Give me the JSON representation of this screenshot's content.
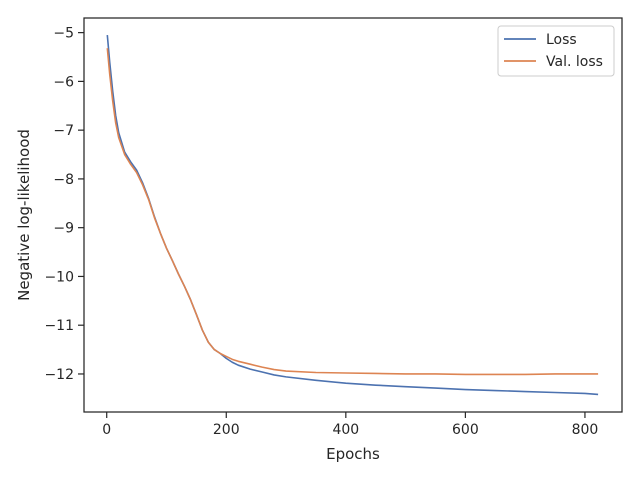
{
  "chart_data": {
    "type": "line",
    "xlabel": "Epochs",
    "ylabel": "Negative log-likelihood",
    "xlim": [
      -38,
      862
    ],
    "ylim": [
      -12.78,
      -4.7
    ],
    "xticks": [
      0,
      200,
      400,
      600,
      800
    ],
    "yticks": [
      -5,
      -6,
      -7,
      -8,
      -9,
      -10,
      -11,
      -12
    ],
    "x_tick_labels": [
      "0",
      "200",
      "400",
      "600",
      "800"
    ],
    "y_tick_labels": [
      "−5",
      "−6",
      "−7",
      "−8",
      "−9",
      "−10",
      "−11",
      "−12"
    ],
    "grid": false,
    "legend": "top-right",
    "series": [
      {
        "name": "Loss",
        "color": "#4c72b0",
        "x": [
          1,
          5,
          10,
          15,
          20,
          30,
          40,
          50,
          60,
          70,
          80,
          90,
          100,
          110,
          120,
          130,
          140,
          150,
          160,
          170,
          180,
          190,
          200,
          210,
          220,
          240,
          260,
          280,
          300,
          350,
          400,
          450,
          500,
          550,
          600,
          650,
          700,
          750,
          800,
          822
        ],
        "y": [
          -5.05,
          -5.6,
          -6.2,
          -6.7,
          -7.05,
          -7.45,
          -7.65,
          -7.82,
          -8.08,
          -8.4,
          -8.78,
          -9.12,
          -9.42,
          -9.68,
          -9.95,
          -10.2,
          -10.47,
          -10.78,
          -11.1,
          -11.35,
          -11.5,
          -11.58,
          -11.68,
          -11.76,
          -11.82,
          -11.9,
          -11.96,
          -12.02,
          -12.06,
          -12.13,
          -12.19,
          -12.23,
          -12.26,
          -12.29,
          -12.32,
          -12.34,
          -12.36,
          -12.38,
          -12.4,
          -12.42
        ]
      },
      {
        "name": "Val. loss",
        "color": "#dd8452",
        "x": [
          1,
          5,
          10,
          15,
          20,
          30,
          40,
          50,
          60,
          70,
          80,
          90,
          100,
          110,
          120,
          130,
          140,
          150,
          160,
          170,
          180,
          190,
          200,
          210,
          220,
          240,
          260,
          280,
          300,
          350,
          400,
          450,
          500,
          550,
          600,
          650,
          700,
          750,
          800,
          822
        ],
        "y": [
          -5.32,
          -5.85,
          -6.4,
          -6.85,
          -7.15,
          -7.5,
          -7.7,
          -7.87,
          -8.12,
          -8.42,
          -8.8,
          -9.12,
          -9.42,
          -9.68,
          -9.95,
          -10.2,
          -10.47,
          -10.78,
          -11.1,
          -11.35,
          -11.5,
          -11.58,
          -11.64,
          -11.7,
          -11.74,
          -11.8,
          -11.86,
          -11.91,
          -11.94,
          -11.97,
          -11.98,
          -11.99,
          -12.0,
          -12.0,
          -12.01,
          -12.01,
          -12.01,
          -12.0,
          -12.0,
          -12.0
        ]
      }
    ]
  }
}
